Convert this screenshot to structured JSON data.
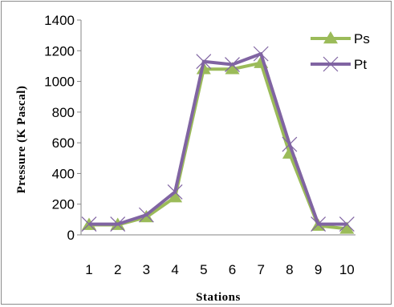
{
  "chart_data": {
    "type": "line",
    "title": "",
    "xlabel": "Stations",
    "ylabel": "Pressure (K Pascal)",
    "categories": [
      "1",
      "2",
      "3",
      "4",
      "5",
      "6",
      "7",
      "8",
      "9",
      "10"
    ],
    "ylim": [
      0,
      1400
    ],
    "yticks": [
      "0",
      "200",
      "400",
      "600",
      "800",
      "1000",
      "1200",
      "1400"
    ],
    "grid": false,
    "legend_position": "top-right",
    "series": [
      {
        "name": "Ps",
        "values": [
          65,
          65,
          115,
          245,
          1080,
          1080,
          1120,
          530,
          60,
          40
        ],
        "color": "#9bbb59",
        "marker": "triangle"
      },
      {
        "name": "Pt",
        "values": [
          70,
          70,
          130,
          280,
          1130,
          1110,
          1180,
          590,
          70,
          70
        ],
        "color": "#8064a2",
        "marker": "x"
      }
    ]
  }
}
